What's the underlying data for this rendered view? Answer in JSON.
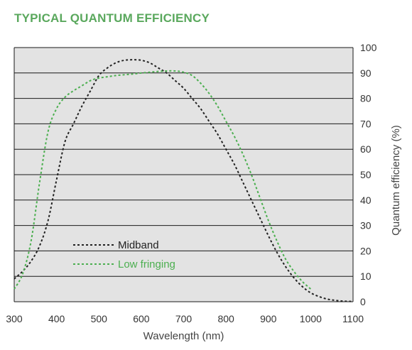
{
  "chart_data": {
    "type": "line",
    "title": "TYPICAL QUANTUM EFFICIENCY",
    "xlabel": "Wavelength (nm)",
    "ylabel": "Quantum efficiency (%)",
    "xlim": [
      300,
      1100
    ],
    "ylim": [
      0,
      100
    ],
    "x_ticks": [
      300,
      400,
      500,
      600,
      700,
      800,
      900,
      1000,
      1100
    ],
    "y_ticks": [
      0,
      10,
      20,
      30,
      40,
      50,
      60,
      70,
      80,
      90,
      100
    ],
    "grid": "horizontal",
    "y_axis_side": "right",
    "legend_position": "inside-bottom-left",
    "series": [
      {
        "name": "Midband",
        "color": "#222222",
        "style": "dotted",
        "x": [
          300,
          320,
          340,
          360,
          380,
          400,
          420,
          440,
          460,
          480,
          500,
          520,
          540,
          560,
          580,
          600,
          620,
          640,
          660,
          680,
          700,
          720,
          740,
          760,
          780,
          800,
          820,
          840,
          860,
          880,
          900,
          920,
          940,
          960,
          980,
          1000,
          1020,
          1040,
          1060,
          1080,
          1100
        ],
        "y": [
          9,
          12,
          16,
          22,
          32,
          48,
          63,
          70,
          77,
          83,
          89,
          92,
          94,
          95,
          95.2,
          95,
          94,
          92,
          90,
          87,
          84,
          80,
          76,
          71,
          66,
          60,
          54,
          47,
          40,
          33,
          26,
          19.5,
          14,
          9.5,
          6,
          3.5,
          2,
          1,
          0.5,
          0.2,
          0.1
        ]
      },
      {
        "name": "Low fringing",
        "color": "#4caf50",
        "style": "dotted",
        "x": [
          300,
          320,
          340,
          360,
          380,
          400,
          420,
          440,
          460,
          480,
          500,
          520,
          540,
          560,
          580,
          600,
          620,
          640,
          660,
          680,
          700,
          720,
          740,
          760,
          780,
          800,
          820,
          840,
          860,
          880,
          900,
          920,
          940,
          960,
          980,
          1000
        ],
        "y": [
          5,
          11,
          24,
          47,
          67,
          76,
          80.5,
          83,
          85,
          87,
          88,
          88.5,
          89,
          89.3,
          89.6,
          90,
          90.3,
          90.6,
          90.8,
          90.8,
          90.3,
          89,
          86,
          82,
          77,
          71,
          65,
          58,
          50,
          41,
          32,
          24,
          17,
          12,
          8,
          5
        ]
      }
    ]
  }
}
